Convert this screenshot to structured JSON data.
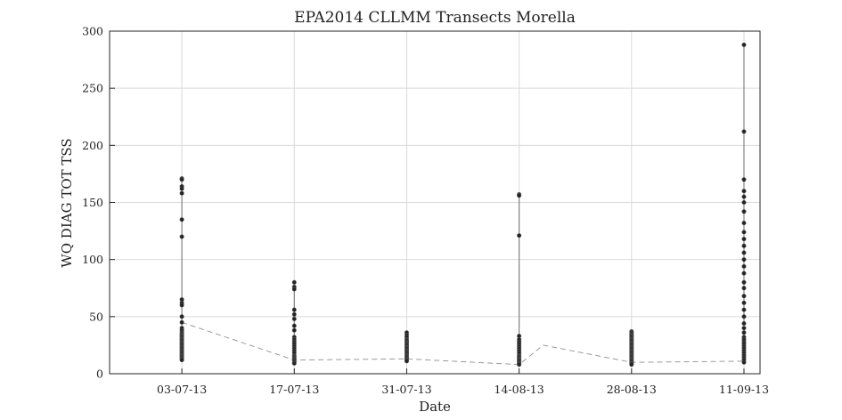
{
  "chart_data": {
    "type": "scatter",
    "title": "EPA2014 CLLMM Transects Morella",
    "xlabel": "Date",
    "ylabel": "WQ DIAG TOT TSS",
    "ylim": [
      0,
      300
    ],
    "yticks": [
      0,
      50,
      100,
      150,
      200,
      250,
      300
    ],
    "xlim": [
      "2013-06-24",
      "2013-09-13"
    ],
    "xticks": [
      {
        "date": "2013-07-03",
        "label": "03-07-13"
      },
      {
        "date": "2013-07-17",
        "label": "17-07-13"
      },
      {
        "date": "2013-07-31",
        "label": "31-07-13"
      },
      {
        "date": "2013-08-14",
        "label": "14-08-13"
      },
      {
        "date": "2013-08-28",
        "label": "28-08-13"
      },
      {
        "date": "2013-09-11",
        "label": "11-09-13"
      }
    ],
    "grid": true,
    "series": [
      {
        "style": "points with vertical range line",
        "groups": [
          {
            "date": "2013-07-03",
            "values": [
              171,
              170,
              164,
              162,
              158,
              135,
              120,
              65,
              62,
              60,
              50,
              45,
              40,
              38,
              36,
              35,
              34,
              33,
              32,
              31,
              30,
              29,
              28,
              27,
              26,
              25,
              24,
              23,
              22,
              21,
              20,
              19,
              18,
              17,
              16,
              15,
              14,
              13,
              12
            ]
          },
          {
            "date": "2013-07-17",
            "values": [
              80,
              76,
              74,
              56,
              52,
              48,
              42,
              38,
              32,
              30,
              28,
              26,
              24,
              22,
              20,
              18,
              16,
              15,
              14,
              13,
              12,
              11,
              10,
              9
            ]
          },
          {
            "date": "2013-07-31",
            "values": [
              36,
              34,
              32,
              30,
              29,
              28,
              27,
              26,
              25,
              24,
              23,
              22,
              21,
              20,
              19,
              18,
              17,
              16,
              15,
              14,
              13,
              12,
              11
            ]
          },
          {
            "date": "2013-08-14",
            "values": [
              157,
              156,
              121,
              33,
              30,
              28,
              26,
              24,
              22,
              20,
              18,
              16,
              15,
              14,
              13,
              12,
              11,
              10,
              9,
              8
            ]
          },
          {
            "date": "2013-08-28",
            "values": [
              37,
              36,
              35,
              34,
              33,
              32,
              31,
              30,
              29,
              28,
              27,
              26,
              25,
              24,
              23,
              22,
              21,
              20,
              19,
              18,
              17,
              16,
              15,
              14,
              13,
              12,
              11,
              10,
              9,
              8
            ]
          },
          {
            "date": "2013-09-11",
            "values": [
              288,
              212,
              170,
              160,
              155,
              150,
              142,
              132,
              124,
              118,
              112,
              106,
              100,
              94,
              88,
              80,
              75,
              68,
              62,
              56,
              50,
              44,
              40,
              36,
              32,
              30,
              28,
              26,
              24,
              22,
              20,
              18,
              16,
              14,
              12,
              10
            ]
          }
        ]
      },
      {
        "style": "dashed line (median)",
        "points": [
          {
            "date": "2013-07-03",
            "value": 45
          },
          {
            "date": "2013-07-17",
            "value": 12
          },
          {
            "date": "2013-07-31",
            "value": 13
          },
          {
            "date": "2013-08-14",
            "value": 8
          },
          {
            "date": "2013-08-17",
            "value": 25
          },
          {
            "date": "2013-08-28",
            "value": 10
          },
          {
            "date": "2013-09-11",
            "value": 11
          }
        ]
      }
    ]
  }
}
